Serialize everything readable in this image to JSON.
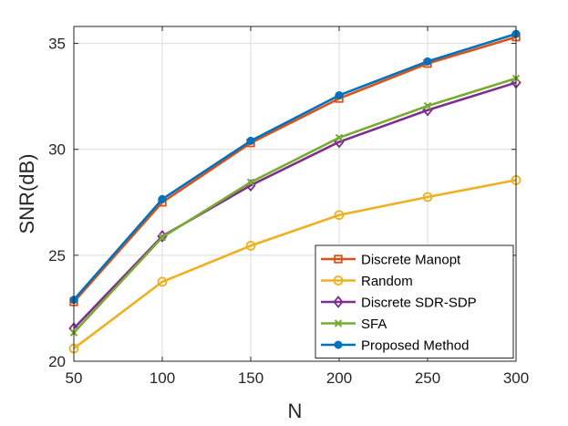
{
  "chart_data": {
    "type": "line",
    "title": "",
    "xlabel": "N",
    "ylabel": "SNR(dB)",
    "x": [
      50,
      100,
      150,
      200,
      250,
      300
    ],
    "xlim": [
      50,
      300
    ],
    "ylim": [
      20,
      35.8
    ],
    "xticks": [
      "50",
      "100",
      "150",
      "200",
      "250",
      "300"
    ],
    "yticks": [
      "20",
      "25",
      "30",
      "35"
    ],
    "ytick_values": [
      20,
      25,
      30,
      35
    ],
    "grid": true,
    "legend_position": "bottom-right",
    "series": [
      {
        "name": "Discrete Manopt",
        "color": "#D95319",
        "marker": "square",
        "values": [
          22.8,
          27.5,
          30.3,
          32.4,
          34.05,
          35.3
        ]
      },
      {
        "name": "Random",
        "color": "#EDB120",
        "marker": "circle",
        "values": [
          20.6,
          23.75,
          25.45,
          26.9,
          27.75,
          28.55
        ]
      },
      {
        "name": "Discrete SDR-SDP",
        "color": "#7E2F8E",
        "marker": "diamond",
        "values": [
          21.55,
          25.9,
          28.3,
          30.35,
          31.85,
          33.15
        ]
      },
      {
        "name": "SFA",
        "color": "#77AC30",
        "marker": "x",
        "values": [
          21.35,
          25.85,
          28.45,
          30.55,
          32.05,
          33.35
        ]
      },
      {
        "name": "Proposed Method",
        "color": "#0072BD",
        "marker": "dot",
        "values": [
          22.9,
          27.65,
          30.4,
          32.55,
          34.15,
          35.45
        ]
      }
    ]
  }
}
